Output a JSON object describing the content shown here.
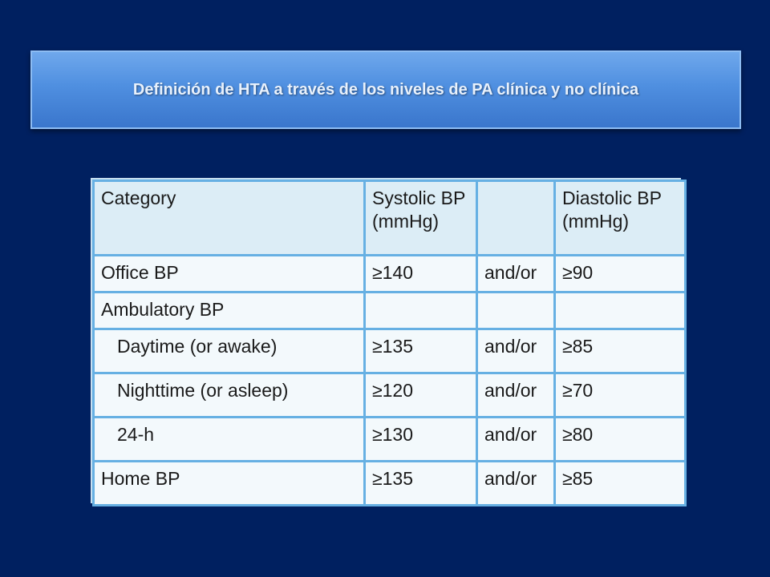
{
  "slide": {
    "title": "Definición de HTA a través de los niveles de PA clínica y no clínica"
  },
  "table": {
    "headers": {
      "category": "Category",
      "systolic": "Systolic BP (mmHg)",
      "connector": "",
      "diastolic": "Diastolic BP (mmHg)"
    },
    "rows": [
      {
        "category": "Office BP",
        "systolic": "≥140",
        "connector": "and/or",
        "diastolic": "≥90"
      },
      {
        "category": "Ambulatory BP",
        "systolic": "",
        "connector": "",
        "diastolic": ""
      },
      {
        "category": "Daytime (or awake)",
        "systolic": "≥135",
        "connector": "and/or",
        "diastolic": "≥85"
      },
      {
        "category": "Nighttime (or asleep)",
        "systolic": "≥120",
        "connector": "and/or",
        "diastolic": "≥70"
      },
      {
        "category": "24-h",
        "systolic": "≥130",
        "connector": "and/or",
        "diastolic": "≥80"
      },
      {
        "category": "Home BP",
        "systolic": "≥135",
        "connector": "and/or",
        "diastolic": "≥85"
      }
    ]
  }
}
